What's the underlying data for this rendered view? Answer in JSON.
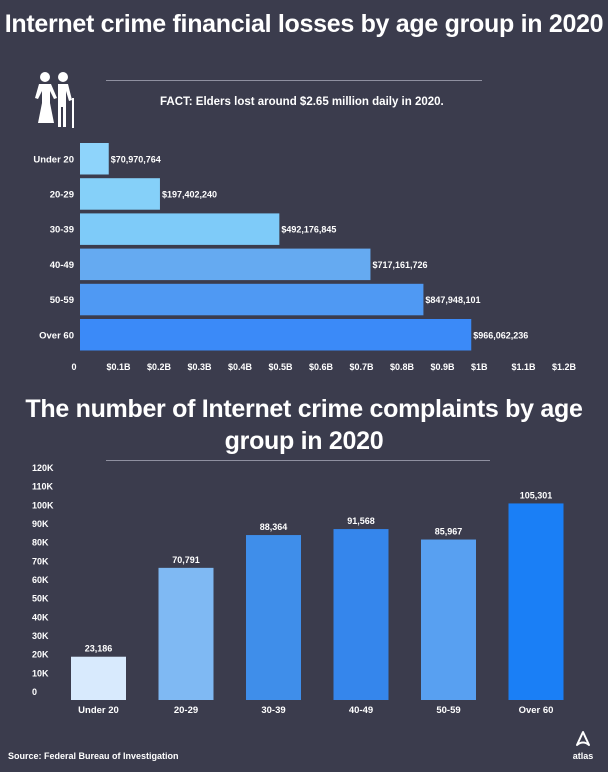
{
  "charts": [
    {
      "title": "Internet crime financial losses by age group in 2020"
    },
    {
      "title": "The number of Internet crime complaints by age group in 2020"
    }
  ],
  "fact": "FACT: Elders lost around $2.65 million daily in 2020.",
  "source": "Source: Federal Bureau of Investigation",
  "brand": "atlas",
  "icons": {
    "elder": "elderly-couple-icon",
    "logo": "atlas-logo-icon"
  },
  "chart_data": [
    {
      "type": "bar",
      "orientation": "horizontal",
      "title": "Internet crime financial losses by age group in 2020",
      "categories": [
        "Under 20",
        "20-29",
        "30-39",
        "40-49",
        "50-59",
        "Over 60"
      ],
      "values": [
        70970764,
        197402240,
        492176845,
        717161726,
        847948101,
        966062236
      ],
      "value_labels": [
        "$70,970,764",
        "$197,402,240",
        "$492,176,845",
        "$717,161,726",
        "$847,948,101",
        "$966,062,236"
      ],
      "xlim": [
        0,
        1200000000
      ],
      "x_ticks": [
        0,
        100000000,
        200000000,
        300000000,
        400000000,
        500000000,
        600000000,
        700000000,
        800000000,
        900000000,
        1000000000,
        1100000000,
        1200000000
      ],
      "x_tick_labels": [
        "0",
        "$0.1B",
        "$0.2B",
        "$0.3B",
        "$0.4B",
        "$0.5B",
        "$0.6B",
        "$0.7B",
        "$0.8B",
        "$0.9B",
        "$1B",
        "$1.1B",
        "$1.2B"
      ],
      "colors": [
        "#8ed4fb",
        "#85d0f9",
        "#7ecbf9",
        "#65aaf1",
        "#4f99f3",
        "#3b8af8"
      ],
      "grid": false
    },
    {
      "type": "bar",
      "orientation": "vertical",
      "title": "The number of Internet crime complaints by age group in 2020",
      "categories": [
        "Under 20",
        "20-29",
        "30-39",
        "40-49",
        "50-59",
        "Over 60"
      ],
      "values": [
        23186,
        70791,
        88364,
        91568,
        85967,
        105301
      ],
      "value_labels": [
        "23,186",
        "70,791",
        "88,364",
        "91,568",
        "85,967",
        "105,301"
      ],
      "ylim": [
        0,
        120000
      ],
      "y_ticks": [
        0,
        10000,
        20000,
        30000,
        40000,
        50000,
        60000,
        70000,
        80000,
        90000,
        100000,
        110000,
        120000
      ],
      "y_tick_labels": [
        "0",
        "10K",
        "20K",
        "30K",
        "40K",
        "50K",
        "60K",
        "70K",
        "80K",
        "90K",
        "100K",
        "110K",
        "120K"
      ],
      "colors": [
        "#d8eafd",
        "#7fb9f3",
        "#3f8eea",
        "#3586ec",
        "#58a0f1",
        "#1a7ff6"
      ],
      "grid": false
    }
  ]
}
